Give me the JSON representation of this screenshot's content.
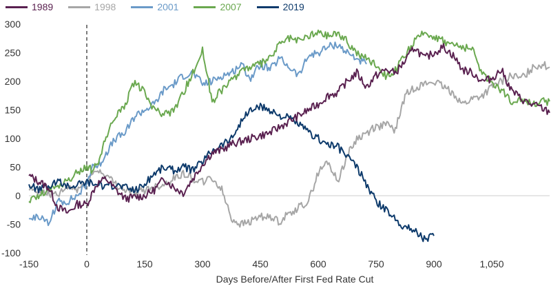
{
  "chart_data": {
    "type": "line",
    "title": "",
    "xlabel": "Days Before/After First Fed Rate Cut",
    "ylabel": "",
    "xlim": [
      -150,
      1200
    ],
    "ylim": [
      -100,
      300
    ],
    "x_ticks": [
      {
        "value": -150,
        "label": "-150"
      },
      {
        "value": 0,
        "label": "0"
      },
      {
        "value": 150,
        "label": "150"
      },
      {
        "value": 300,
        "label": "300"
      },
      {
        "value": 450,
        "label": "450"
      },
      {
        "value": 600,
        "label": "600"
      },
      {
        "value": 750,
        "label": "750"
      },
      {
        "value": 900,
        "label": "900"
      },
      {
        "value": 1050,
        "label": "1,050"
      }
    ],
    "y_ticks": [
      {
        "value": 300,
        "label": "300"
      },
      {
        "value": 250,
        "label": "250"
      },
      {
        "value": 200,
        "label": "200"
      },
      {
        "value": 150,
        "label": "150"
      },
      {
        "value": 100,
        "label": "100"
      },
      {
        "value": 50,
        "label": "50"
      },
      {
        "value": 0,
        "label": "0"
      },
      {
        "value": -50,
        "label": "-50"
      },
      {
        "value": -100,
        "label": "-100"
      }
    ],
    "vertical_reference_line": {
      "x": 0,
      "style": "dashed"
    },
    "legend_position": "top-left",
    "series": [
      {
        "name": "1989",
        "color": "#5a2150",
        "x": [
          -150,
          -100,
          -75,
          -50,
          -25,
          0,
          25,
          50,
          75,
          100,
          150,
          175,
          200,
          225,
          250,
          275,
          300,
          325,
          350,
          375,
          400,
          425,
          450,
          475,
          500,
          525,
          550,
          575,
          600,
          625,
          650,
          675,
          700,
          725,
          750,
          775,
          800,
          825,
          850,
          875,
          900,
          925,
          950,
          975,
          1000,
          1025,
          1050,
          1075,
          1100,
          1125,
          1150,
          1175,
          1200
        ],
        "y": [
          35,
          15,
          -20,
          -30,
          -15,
          -15,
          20,
          30,
          10,
          -5,
          0,
          10,
          30,
          15,
          5,
          30,
          55,
          75,
          80,
          90,
          95,
          100,
          105,
          110,
          120,
          130,
          140,
          150,
          160,
          175,
          180,
          200,
          215,
          190,
          210,
          220,
          215,
          235,
          260,
          240,
          250,
          260,
          245,
          220,
          215,
          200,
          205,
          220,
          185,
          170,
          160,
          155,
          145
        ]
      },
      {
        "name": "1998",
        "color": "#a6a6a6",
        "x": [
          -150,
          -100,
          -75,
          -50,
          -25,
          0,
          25,
          50,
          75,
          100,
          125,
          150,
          175,
          200,
          225,
          250,
          275,
          300,
          325,
          350,
          375,
          400,
          425,
          450,
          475,
          500,
          525,
          550,
          575,
          600,
          625,
          650,
          675,
          700,
          725,
          750,
          775,
          800,
          825,
          850,
          875,
          900,
          925,
          950,
          975,
          1000,
          1025,
          1050,
          1075,
          1100,
          1125,
          1150,
          1175,
          1200
        ],
        "y": [
          10,
          5,
          0,
          15,
          10,
          25,
          45,
          35,
          20,
          10,
          5,
          10,
          15,
          20,
          30,
          40,
          30,
          25,
          30,
          10,
          -40,
          -50,
          -45,
          -35,
          -40,
          -45,
          -30,
          -20,
          -10,
          40,
          60,
          25,
          70,
          100,
          110,
          120,
          125,
          115,
          175,
          190,
          195,
          200,
          190,
          180,
          160,
          170,
          175,
          190,
          200,
          210,
          205,
          220,
          230,
          225
        ]
      },
      {
        "name": "2001",
        "color": "#6a9ac8",
        "x": [
          -150,
          -125,
          -100,
          -75,
          -50,
          -25,
          0,
          15,
          30,
          50,
          75,
          100,
          125,
          150,
          175,
          200,
          225,
          250,
          275,
          300,
          325,
          350,
          375,
          400,
          425,
          450,
          475,
          500,
          525,
          550,
          575,
          600,
          625,
          650,
          675,
          700,
          725
        ],
        "y": [
          -40,
          -35,
          -50,
          -10,
          -10,
          0,
          20,
          55,
          50,
          75,
          100,
          110,
          140,
          150,
          160,
          185,
          195,
          210,
          215,
          195,
          200,
          210,
          215,
          230,
          205,
          230,
          220,
          240,
          225,
          210,
          245,
          250,
          260,
          265,
          250,
          240,
          230
        ]
      },
      {
        "name": "2007",
        "color": "#6aa84f",
        "x": [
          -150,
          -125,
          -100,
          -75,
          -50,
          -25,
          0,
          15,
          30,
          50,
          75,
          100,
          115,
          125,
          150,
          175,
          200,
          225,
          250,
          275,
          300,
          325,
          350,
          375,
          400,
          425,
          450,
          475,
          500,
          525,
          550,
          575,
          600,
          625,
          650,
          675,
          700,
          725,
          750,
          775,
          800,
          825,
          850,
          875,
          900,
          925,
          950,
          975,
          1000,
          1025,
          1050,
          1075,
          1100,
          1125,
          1150,
          1175,
          1200
        ],
        "y": [
          -10,
          0,
          10,
          15,
          25,
          40,
          50,
          45,
          60,
          100,
          140,
          160,
          185,
          200,
          180,
          150,
          140,
          150,
          180,
          215,
          255,
          165,
          185,
          200,
          220,
          225,
          230,
          240,
          265,
          275,
          270,
          280,
          285,
          280,
          285,
          270,
          250,
          240,
          230,
          210,
          220,
          245,
          270,
          285,
          280,
          270,
          265,
          260,
          255,
          215,
          200,
          185,
          165,
          170,
          160,
          165,
          165
        ]
      },
      {
        "name": "2019",
        "color": "#0d3a6b",
        "x": [
          -150,
          -125,
          -100,
          -75,
          -50,
          -25,
          0,
          25,
          50,
          75,
          100,
          125,
          150,
          175,
          200,
          225,
          250,
          275,
          300,
          325,
          350,
          375,
          400,
          425,
          450,
          475,
          500,
          525,
          550,
          575,
          600,
          625,
          650,
          675,
          700,
          725,
          750,
          775,
          800,
          825,
          850,
          875,
          900
        ],
        "y": [
          20,
          10,
          15,
          25,
          15,
          20,
          25,
          20,
          15,
          20,
          15,
          10,
          20,
          40,
          50,
          45,
          50,
          45,
          60,
          80,
          90,
          100,
          130,
          150,
          155,
          150,
          140,
          135,
          125,
          110,
          100,
          90,
          85,
          70,
          50,
          20,
          -10,
          -25,
          -40,
          -55,
          -60,
          -75,
          -70
        ]
      }
    ]
  }
}
